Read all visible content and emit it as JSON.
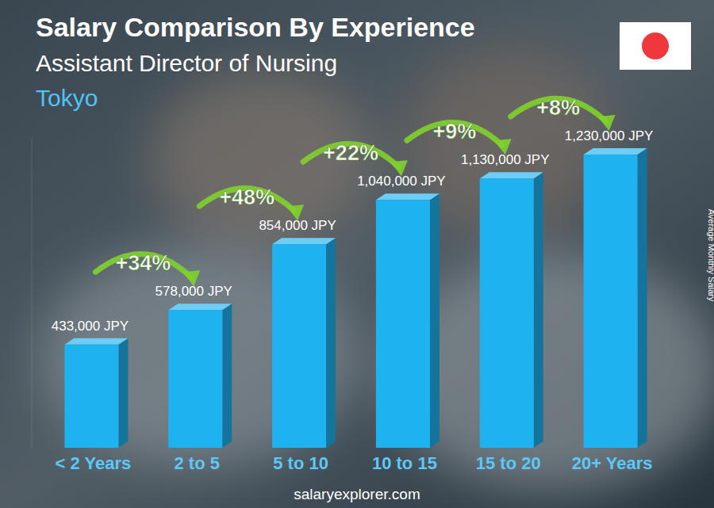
{
  "chart_data": {
    "type": "bar",
    "title": "Salary Comparison By Experience",
    "subtitle": "Assistant Director of Nursing",
    "location": "Tokyo",
    "y_label": "Average Monthly Salary",
    "source": "salaryexplorer.com",
    "categories": [
      "< 2 Years",
      "2 to 5",
      "5 to 10",
      "10 to 15",
      "15 to 20",
      "20+ Years"
    ],
    "values": [
      433000,
      578000,
      854000,
      1040000,
      1130000,
      1230000
    ],
    "value_labels": [
      "433,000 JPY",
      "578,000 JPY",
      "854,000 JPY",
      "1,040,000 JPY",
      "1,130,000 JPY",
      "1,230,000 JPY"
    ],
    "annotations": [
      "+34%",
      "+48%",
      "+22%",
      "+9%",
      "+8%"
    ],
    "color": "#1fb2f0",
    "ylim": [
      0,
      1300000
    ],
    "data_labels": true,
    "tick_labels": "x",
    "grid": false
  }
}
